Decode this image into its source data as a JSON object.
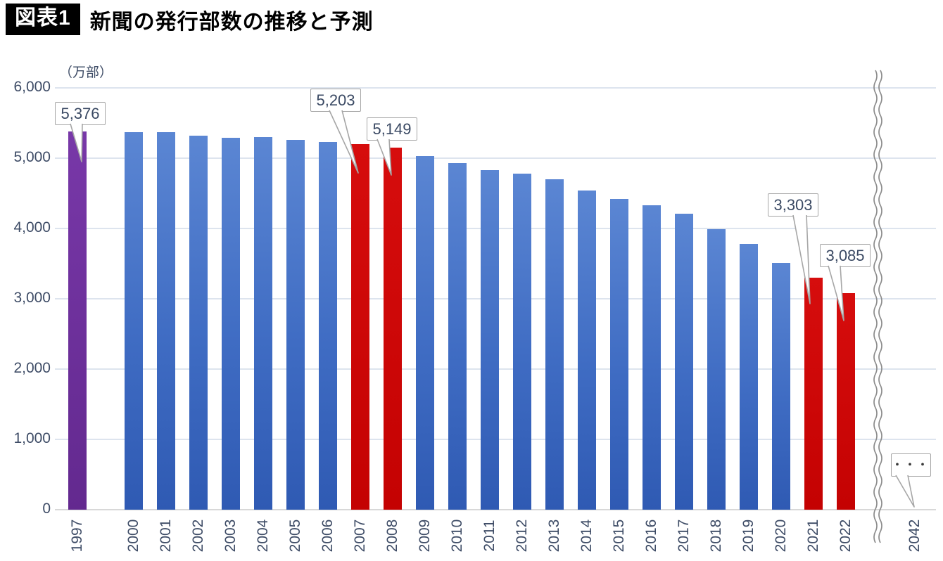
{
  "header": {
    "badge": "図表1",
    "title": "新聞の発行部数の推移と予測"
  },
  "chart_data": {
    "type": "bar",
    "title": "新聞の発行部数の推移と予測",
    "unit_label": "（万部）",
    "ylim": [
      0,
      6000
    ],
    "ytick_values": [
      0,
      1000,
      2000,
      3000,
      4000,
      5000,
      6000
    ],
    "ytick_labels": [
      "0",
      "1,000",
      "2,000",
      "3,000",
      "4,000",
      "5,000",
      "6,000"
    ],
    "grid": true,
    "bar_colors": {
      "blue": "#3f6cc3",
      "red": "#c40202",
      "purple": "#6b2e99"
    },
    "axis_break_after": "2022",
    "bars": [
      {
        "year": "1997",
        "value": 5376,
        "color": "purple",
        "callout": "5,376"
      },
      {
        "year": "2000",
        "value": 5371,
        "color": "blue"
      },
      {
        "year": "2001",
        "value": 5368,
        "color": "blue"
      },
      {
        "year": "2002",
        "value": 5320,
        "color": "blue"
      },
      {
        "year": "2003",
        "value": 5287,
        "color": "blue"
      },
      {
        "year": "2004",
        "value": 5302,
        "color": "blue"
      },
      {
        "year": "2005",
        "value": 5257,
        "color": "blue"
      },
      {
        "year": "2006",
        "value": 5231,
        "color": "blue"
      },
      {
        "year": "2007",
        "value": 5203,
        "color": "red",
        "callout": "5,203"
      },
      {
        "year": "2008",
        "value": 5149,
        "color": "red",
        "callout": "5,149"
      },
      {
        "year": "2009",
        "value": 5035,
        "color": "blue"
      },
      {
        "year": "2010",
        "value": 4932,
        "color": "blue"
      },
      {
        "year": "2011",
        "value": 4835,
        "color": "blue"
      },
      {
        "year": "2012",
        "value": 4778,
        "color": "blue"
      },
      {
        "year": "2013",
        "value": 4700,
        "color": "blue"
      },
      {
        "year": "2014",
        "value": 4536,
        "color": "blue"
      },
      {
        "year": "2015",
        "value": 4425,
        "color": "blue"
      },
      {
        "year": "2016",
        "value": 4328,
        "color": "blue"
      },
      {
        "year": "2017",
        "value": 4213,
        "color": "blue"
      },
      {
        "year": "2018",
        "value": 3990,
        "color": "blue"
      },
      {
        "year": "2019",
        "value": 3781,
        "color": "blue"
      },
      {
        "year": "2020",
        "value": 3509,
        "color": "blue"
      },
      {
        "year": "2021",
        "value": 3303,
        "color": "red",
        "callout": "3,303"
      },
      {
        "year": "2022",
        "value": 3085,
        "color": "red",
        "callout": "3,085"
      }
    ],
    "future": {
      "year": "2042",
      "callout": "・・・"
    }
  }
}
